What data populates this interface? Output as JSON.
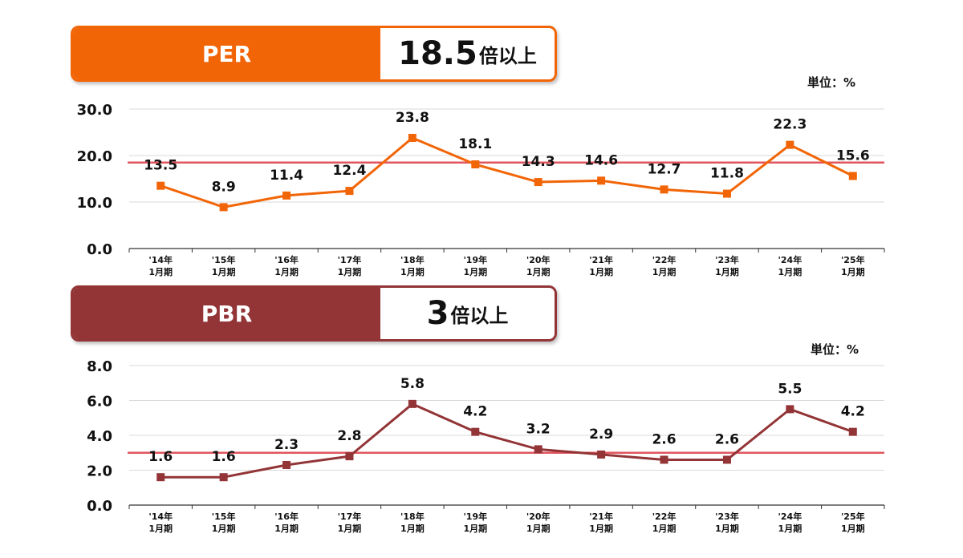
{
  "per": {
    "label": "PER",
    "threshold_value": "18.5",
    "threshold_suffix": "倍以上",
    "unit": "単位：%"
  },
  "pbr": {
    "label": "PBR",
    "threshold_value": "3",
    "threshold_suffix": "倍以上",
    "unit": "単位：%"
  },
  "colors": {
    "per_line": "#f26507",
    "pbr_line": "#933436",
    "threshold_line": "#e0555e",
    "grid": "#d9d9d9"
  },
  "chart_data": [
    {
      "type": "line",
      "categories_year": [
        "'14年",
        "'15年",
        "'16年",
        "'17年",
        "'18年",
        "'19年",
        "'20年",
        "'21年",
        "'22年",
        "'23年",
        "'24年",
        "'25年"
      ],
      "categories_period": [
        "1月期",
        "1月期",
        "1月期",
        "1月期",
        "1月期",
        "1月期",
        "1月期",
        "1月期",
        "1月期",
        "1月期",
        "1月期",
        "1月期"
      ],
      "series": [
        {
          "values": [
            13.5,
            8.9,
            11.4,
            12.4,
            23.8,
            18.1,
            14.3,
            14.6,
            12.7,
            11.8,
            22.3,
            15.6
          ]
        }
      ],
      "value_labels": [
        "13.5",
        "8.9",
        "11.4",
        "12.4",
        "23.8",
        "18.1",
        "14.3",
        "14.6",
        "12.7",
        "11.8",
        "22.3",
        "15.6"
      ],
      "threshold": 18.5,
      "ylim": [
        0,
        30
      ],
      "yticks": [
        0,
        10,
        20,
        30
      ],
      "ytick_labels": [
        "0.0",
        "10.0",
        "20.0",
        "30.0"
      ],
      "grid": true
    },
    {
      "type": "line",
      "categories_year": [
        "'14年",
        "'15年",
        "'16年",
        "'17年",
        "'18年",
        "'19年",
        "'20年",
        "'21年",
        "'22年",
        "'23年",
        "'24年",
        "'25年"
      ],
      "categories_period": [
        "1月期",
        "1月期",
        "1月期",
        "1月期",
        "1月期",
        "1月期",
        "1月期",
        "1月期",
        "1月期",
        "1月期",
        "1月期",
        "1月期"
      ],
      "series": [
        {
          "values": [
            1.6,
            1.6,
            2.3,
            2.8,
            5.8,
            4.2,
            3.2,
            2.9,
            2.6,
            2.6,
            5.5,
            4.2
          ]
        }
      ],
      "value_labels": [
        "1.6",
        "1.6",
        "2.3",
        "2.8",
        "5.8",
        "4.2",
        "3.2",
        "2.9",
        "2.6",
        "2.6",
        "5.5",
        "4.2"
      ],
      "threshold": 3,
      "ylim": [
        0,
        8
      ],
      "yticks": [
        0,
        2,
        4,
        6,
        8
      ],
      "ytick_labels": [
        "0.0",
        "2.0",
        "4.0",
        "6.0",
        "8.0"
      ],
      "grid": true
    }
  ]
}
